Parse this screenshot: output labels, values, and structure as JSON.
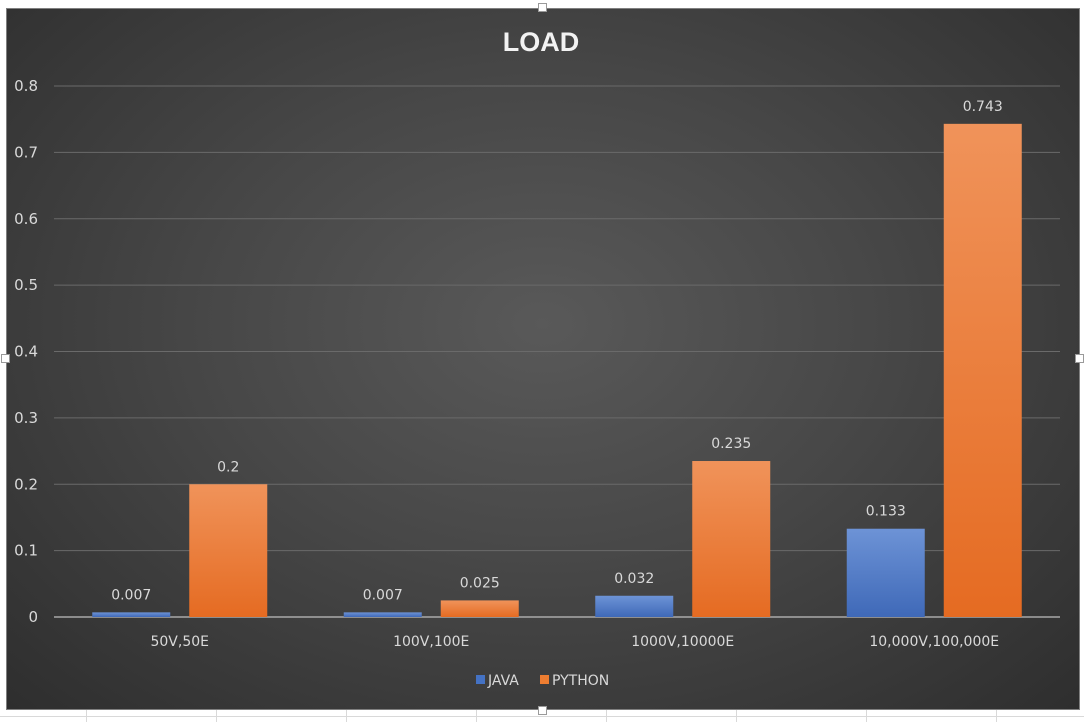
{
  "chart_data": {
    "type": "bar",
    "title": "LOAD",
    "categories": [
      "50V,50E",
      "100V,100E",
      "1000V,10000E",
      "10,000V,100,000E"
    ],
    "series": [
      {
        "name": "JAVA",
        "color": "#4472c4",
        "values": [
          0.007,
          0.007,
          0.032,
          0.133
        ],
        "labels": [
          "0.007",
          "0.007",
          "0.032",
          "0.133"
        ]
      },
      {
        "name": "PYTHON",
        "color": "#ed7d31",
        "values": [
          0.2,
          0.025,
          0.235,
          0.743
        ],
        "labels": [
          "0.2",
          "0.025",
          "0.235",
          "0.743"
        ]
      }
    ],
    "ylim": [
      0,
      0.8
    ],
    "yticks": [
      "0",
      "0.1",
      "0.2",
      "0.3",
      "0.4",
      "0.5",
      "0.6",
      "0.7",
      "0.8"
    ],
    "xlabel": "",
    "ylabel": "",
    "grid": true,
    "legend": "bottom"
  }
}
